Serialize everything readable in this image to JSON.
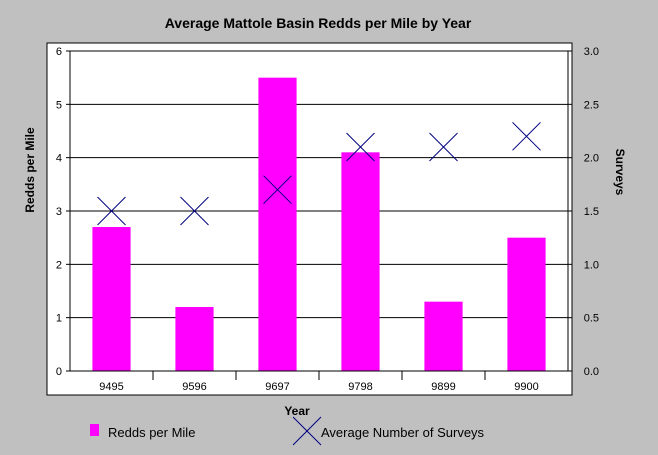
{
  "chart_data": {
    "type": "bar",
    "title": "Average Mattole Basin Redds per Mile by Year",
    "xlabel": "Year",
    "ylabel": "Redds per Mile",
    "y2label": "Surveys",
    "categories": [
      "9495",
      "9596",
      "9697",
      "9798",
      "9899",
      "9900"
    ],
    "ylim": [
      0,
      6
    ],
    "y2lim": [
      0,
      3.0
    ],
    "yticks": [
      "0",
      "1",
      "2",
      "3",
      "4",
      "5",
      "6"
    ],
    "y2ticks": [
      "0.0",
      "0.5",
      "1.0",
      "1.5",
      "2.0",
      "2.5",
      "3.0"
    ],
    "grid": true,
    "legend_position": "bottom",
    "series": [
      {
        "name": "Redds per Mile",
        "type": "bar",
        "axis": "left",
        "color": "#ff00ff",
        "values": [
          2.7,
          1.2,
          5.5,
          4.1,
          1.3,
          2.5
        ]
      },
      {
        "name": "Average Number of Surveys",
        "type": "scatter",
        "marker": "x",
        "axis": "right",
        "color": "#000080",
        "values": [
          1.5,
          1.5,
          1.7,
          2.1,
          2.1,
          2.2
        ]
      }
    ]
  }
}
